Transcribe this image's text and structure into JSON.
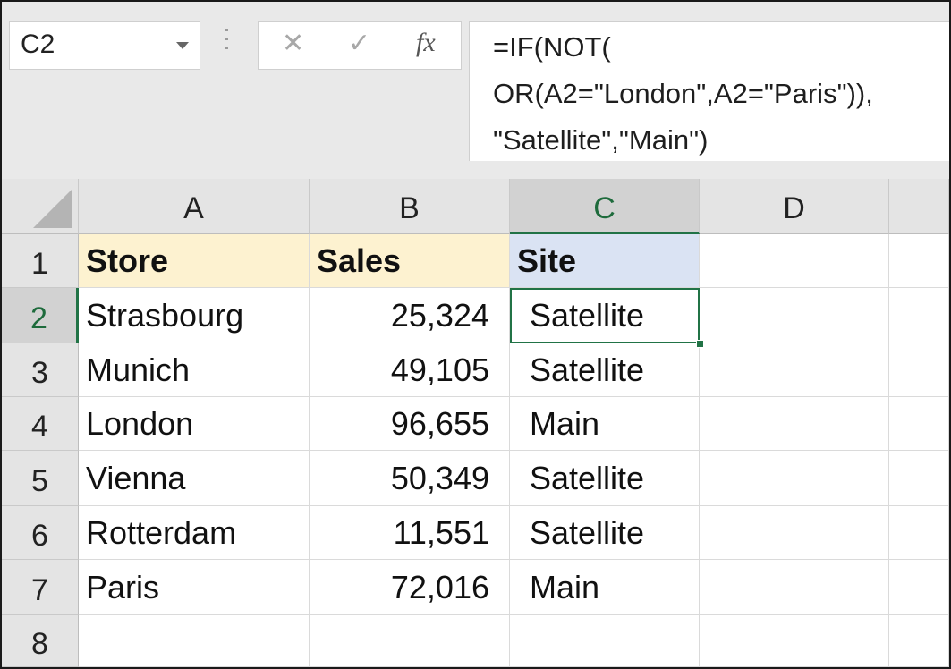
{
  "formula_bar": {
    "name_box": "C2",
    "cancel_glyph": "✕",
    "enter_glyph": "✓",
    "fx_label": "fx",
    "formula_lines": [
      "=IF(NOT(",
      "OR(A2=\"London\",A2=\"Paris\")),",
      "\"Satellite\",\"Main\")"
    ]
  },
  "columns": [
    "A",
    "B",
    "C",
    "D"
  ],
  "rows": [
    "1",
    "2",
    "3",
    "4",
    "5",
    "6",
    "7",
    "8"
  ],
  "header": {
    "a": "Store",
    "b": "Sales",
    "c": "Site"
  },
  "data": [
    {
      "store": "Strasbourg",
      "sales": "25,324",
      "site": "Satellite"
    },
    {
      "store": "Munich",
      "sales": "49,105",
      "site": "Satellite"
    },
    {
      "store": "London",
      "sales": "96,655",
      "site": "Main"
    },
    {
      "store": "Vienna",
      "sales": "50,349",
      "site": "Satellite"
    },
    {
      "store": "Rotterdam",
      "sales": "11,551",
      "site": "Satellite"
    },
    {
      "store": "Paris",
      "sales": "72,016",
      "site": "Main"
    }
  ],
  "colors": {
    "accent": "#217346",
    "header_fill": "#fdf2d0",
    "site_fill": "#dae3f3"
  },
  "icons": [
    "dropdown-arrow-icon",
    "grip-dots-icon",
    "cancel-icon",
    "enter-icon",
    "insert-function-icon",
    "select-all-icon"
  ]
}
